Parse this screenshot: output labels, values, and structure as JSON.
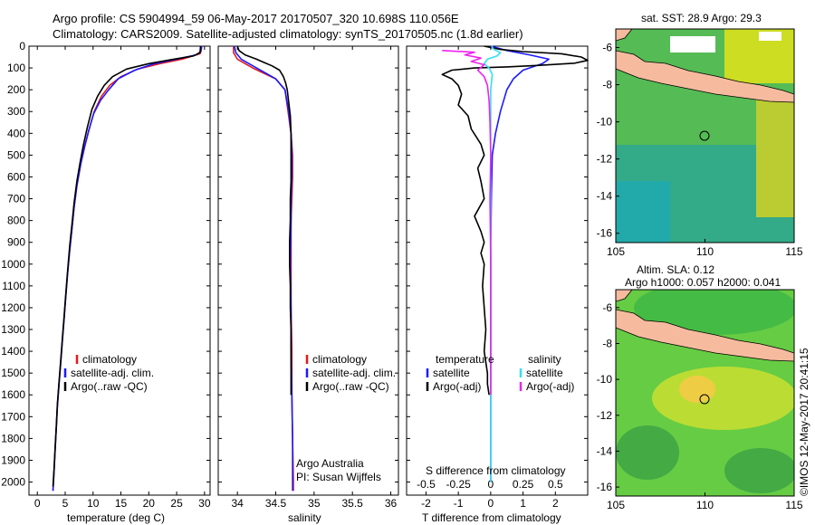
{
  "header": {
    "line1": "Argo profile: CS 5904994_59 06-May-2017 20170507_320 10.698S 110.056E",
    "line2": "Climatology: CARS2009. Satellite-adjusted climatology: synTS_20170505.nc (1.8d earlier)"
  },
  "colors": {
    "climatology": "#e31a1c",
    "satellite": "#1a1aff",
    "argo": "#000000",
    "satellite_salinity": "#33e0ee",
    "argo_salinity": "#ee22ee"
  },
  "depth_axis": {
    "ticks": [
      0,
      100,
      200,
      300,
      400,
      500,
      600,
      700,
      800,
      900,
      1000,
      1100,
      1200,
      1300,
      1400,
      1500,
      1600,
      1700,
      1800,
      1900,
      2000
    ],
    "range": [
      0,
      2060
    ]
  },
  "chart_data": [
    {
      "id": "temperature",
      "type": "line",
      "xlabel": "temperature (deg C)",
      "xlim": [
        -1.5,
        31
      ],
      "xticks": [
        "0",
        "5",
        "10",
        "15",
        "20",
        "25",
        "30"
      ],
      "y_axis": "depth (inverted)",
      "legend": [
        "climatology",
        "satellite-adj. clim.",
        "Argo(..raw -QC)"
      ],
      "series": [
        {
          "name": "climatology",
          "color": "#e31a1c",
          "points": [
            [
              29.5,
              0
            ],
            [
              29.4,
              20
            ],
            [
              29.2,
              35
            ],
            [
              26,
              60
            ],
            [
              22,
              80
            ],
            [
              18,
              105
            ],
            [
              15,
              140
            ],
            [
              13,
              180
            ],
            [
              11.5,
              230
            ],
            [
              10.2,
              300
            ],
            [
              9.3,
              380
            ],
            [
              8.5,
              460
            ],
            [
              7.8,
              540
            ],
            [
              7.1,
              640
            ],
            [
              6.6,
              740
            ],
            [
              6.2,
              840
            ],
            [
              5.8,
              940
            ],
            [
              5.4,
              1050
            ],
            [
              5.1,
              1150
            ],
            [
              4.8,
              1250
            ],
            [
              4.5,
              1350
            ],
            [
              4.2,
              1450
            ],
            [
              3.9,
              1550
            ],
            [
              3.6,
              1650
            ],
            [
              3.4,
              1750
            ],
            [
              3.2,
              1850
            ],
            [
              3.0,
              1950
            ],
            [
              2.8,
              2040
            ]
          ]
        },
        {
          "name": "satellite-adj. clim.",
          "color": "#1a1aff",
          "points": [
            [
              29.5,
              0
            ],
            [
              29.3,
              25
            ],
            [
              28.5,
              40
            ],
            [
              25,
              60
            ],
            [
              21,
              80
            ],
            [
              17.5,
              110
            ],
            [
              14.5,
              150
            ],
            [
              12.8,
              200
            ],
            [
              11.3,
              250
            ],
            [
              10.1,
              310
            ],
            [
              9.2,
              390
            ],
            [
              8.5,
              460
            ],
            [
              7.8,
              540
            ],
            [
              7.1,
              640
            ],
            [
              6.6,
              740
            ],
            [
              6.2,
              840
            ],
            [
              5.8,
              940
            ],
            [
              5.4,
              1050
            ],
            [
              5.1,
              1150
            ],
            [
              4.8,
              1250
            ],
            [
              4.5,
              1350
            ],
            [
              4.2,
              1450
            ],
            [
              3.9,
              1550
            ],
            [
              3.6,
              1650
            ],
            [
              3.4,
              1750
            ],
            [
              3.2,
              1850
            ],
            [
              3.0,
              1950
            ],
            [
              2.8,
              2040
            ]
          ]
        },
        {
          "name": "Argo(..raw -QC)",
          "color": "#000000",
          "points": [
            [
              29.3,
              0
            ],
            [
              29.2,
              30
            ],
            [
              28,
              45
            ],
            [
              24,
              62
            ],
            [
              20,
              80
            ],
            [
              16,
              105
            ],
            [
              13.5,
              140
            ],
            [
              12,
              180
            ],
            [
              10.8,
              230
            ],
            [
              9.8,
              290
            ],
            [
              9.0,
              370
            ],
            [
              8.3,
              450
            ],
            [
              7.7,
              530
            ],
            [
              7.1,
              620
            ],
            [
              6.6,
              720
            ],
            [
              6.2,
              820
            ],
            [
              5.8,
              920
            ],
            [
              5.4,
              1040
            ],
            [
              5.1,
              1140
            ],
            [
              4.8,
              1240
            ],
            [
              4.5,
              1340
            ],
            [
              4.2,
              1440
            ],
            [
              3.9,
              1540
            ],
            [
              3.6,
              1640
            ],
            [
              3.4,
              1740
            ],
            [
              3.2,
              1840
            ],
            [
              3.0,
              1940
            ],
            [
              2.8,
              2020
            ]
          ]
        }
      ]
    },
    {
      "id": "salinity",
      "type": "line",
      "xlabel": "salinity",
      "xlim": [
        33.75,
        36.1
      ],
      "xticks": [
        "34",
        "34.5",
        "35",
        "35.5",
        "36"
      ],
      "y_axis": "depth (inverted)",
      "legend": [
        "climatology",
        "satellite-adj. clim.",
        "Argo(..raw -QC)"
      ],
      "annotation": [
        "Argo Australia",
        "PI: Susan Wijffels"
      ],
      "series": [
        {
          "name": "climatology",
          "color": "#e31a1c",
          "points": [
            [
              33.95,
              0
            ],
            [
              33.95,
              30
            ],
            [
              34.0,
              60
            ],
            [
              34.2,
              100
            ],
            [
              34.5,
              150
            ],
            [
              34.62,
              200
            ],
            [
              34.66,
              300
            ],
            [
              34.7,
              400
            ],
            [
              34.72,
              500
            ],
            [
              34.72,
              600
            ],
            [
              34.71,
              700
            ],
            [
              34.7,
              800
            ],
            [
              34.7,
              1000
            ],
            [
              34.7,
              1200
            ],
            [
              34.71,
              1400
            ],
            [
              34.71,
              1600
            ],
            [
              34.72,
              1800
            ],
            [
              34.73,
              2000
            ],
            [
              34.73,
              2040
            ]
          ]
        },
        {
          "name": "satellite-adj. clim.",
          "color": "#1a1aff",
          "points": [
            [
              33.96,
              0
            ],
            [
              33.98,
              30
            ],
            [
              34.05,
              60
            ],
            [
              34.25,
              100
            ],
            [
              34.5,
              150
            ],
            [
              34.62,
              200
            ],
            [
              34.67,
              300
            ],
            [
              34.7,
              400
            ],
            [
              34.71,
              500
            ],
            [
              34.71,
              600
            ],
            [
              34.7,
              700
            ],
            [
              34.7,
              800
            ],
            [
              34.69,
              1000
            ],
            [
              34.7,
              1200
            ],
            [
              34.7,
              1400
            ],
            [
              34.71,
              1600
            ],
            [
              34.72,
              1800
            ],
            [
              34.72,
              2000
            ],
            [
              34.72,
              2040
            ]
          ]
        },
        {
          "name": "Argo(..raw -QC)",
          "color": "#000000",
          "points": [
            [
              34.0,
              0
            ],
            [
              34.02,
              20
            ],
            [
              34.1,
              40
            ],
            [
              34.25,
              60
            ],
            [
              34.35,
              75
            ],
            [
              34.45,
              90
            ],
            [
              34.55,
              110
            ],
            [
              34.6,
              140
            ],
            [
              34.63,
              170
            ],
            [
              34.65,
              200
            ],
            [
              34.67,
              260
            ],
            [
              34.69,
              320
            ],
            [
              34.7,
              400
            ],
            [
              34.7,
              470
            ],
            [
              34.7,
              540
            ],
            [
              34.7,
              620
            ],
            [
              34.69,
              700
            ],
            [
              34.69,
              800
            ],
            [
              34.68,
              900
            ],
            [
              34.68,
              1000
            ],
            [
              34.69,
              1100
            ],
            [
              34.69,
              1200
            ],
            [
              34.7,
              1300
            ],
            [
              34.7,
              1400
            ],
            [
              34.7,
              1500
            ],
            [
              34.7,
              1600
            ]
          ]
        }
      ]
    },
    {
      "id": "differences",
      "type": "line",
      "xlabel": "T difference from climatology",
      "xlim": [
        -2.6,
        3.0
      ],
      "xticks": [
        "-2",
        "-1",
        "0",
        "1",
        "2"
      ],
      "top_xlabel": "S difference from climatology",
      "top_xticks": [
        "-0.5",
        "-0.25",
        "0",
        "0.25",
        "0.5"
      ],
      "s_diff_scale": "T units = 4 x S units",
      "legend_left_title": "temperature",
      "legend_right_title": "salinity",
      "legend": [
        "satellite",
        "Argo(-adj)",
        "satellite",
        "Argo(-adj)"
      ],
      "series": [
        {
          "name": "temperature satellite",
          "color": "#1a1aff",
          "points": [
            [
              0,
              0
            ],
            [
              0.5,
              20
            ],
            [
              1.2,
              40
            ],
            [
              1.8,
              60
            ],
            [
              1.6,
              80
            ],
            [
              1.0,
              110
            ],
            [
              0.7,
              150
            ],
            [
              0.5,
              200
            ],
            [
              0.3,
              300
            ],
            [
              0.15,
              400
            ],
            [
              0.05,
              500
            ],
            [
              0.02,
              700
            ],
            [
              0.0,
              900
            ],
            [
              0.0,
              1200
            ],
            [
              0.0,
              1600
            ],
            [
              0.0,
              2000
            ]
          ]
        },
        {
          "name": "temperature Argo(-adj)",
          "color": "#000000",
          "points": [
            [
              -0.2,
              0
            ],
            [
              0.3,
              15
            ],
            [
              1.0,
              25
            ],
            [
              2.2,
              35
            ],
            [
              2.8,
              50
            ],
            [
              3.0,
              65
            ],
            [
              2.6,
              78
            ],
            [
              1.5,
              88
            ],
            [
              0.5,
              95
            ],
            [
              -0.5,
              100
            ],
            [
              -1.2,
              110
            ],
            [
              -1.5,
              130
            ],
            [
              -1.2,
              150
            ],
            [
              -1.0,
              180
            ],
            [
              -0.9,
              220
            ],
            [
              -1.0,
              270
            ],
            [
              -0.7,
              320
            ],
            [
              -0.6,
              380
            ],
            [
              -0.3,
              450
            ],
            [
              -0.2,
              500
            ],
            [
              -0.4,
              560
            ],
            [
              -0.3,
              620
            ],
            [
              -0.2,
              700
            ],
            [
              -0.5,
              780
            ],
            [
              -0.3,
              850
            ],
            [
              -0.2,
              900
            ],
            [
              -0.3,
              950
            ],
            [
              -0.2,
              1000
            ],
            [
              -0.25,
              1100
            ],
            [
              -0.2,
              1200
            ],
            [
              -0.15,
              1300
            ],
            [
              -0.2,
              1400
            ],
            [
              -0.1,
              1500
            ],
            [
              -0.1,
              1550
            ],
            [
              -0.05,
              1600
            ]
          ]
        },
        {
          "name": "salinity satellite",
          "color": "#33e0ee",
          "points": [
            [
              0.02,
              0
            ],
            [
              0.1,
              15
            ],
            [
              0.3,
              30
            ],
            [
              0.2,
              45
            ],
            [
              -0.1,
              60
            ],
            [
              -0.2,
              80
            ],
            [
              -0.05,
              100
            ],
            [
              0.05,
              130
            ],
            [
              0.0,
              200
            ],
            [
              0.0,
              300
            ],
            [
              0.0,
              500
            ],
            [
              0.0,
              800
            ],
            [
              0.0,
              1200
            ],
            [
              0.0,
              1600
            ],
            [
              0.0,
              2000
            ]
          ]
        },
        {
          "name": "salinity Argo(-adj)",
          "color": "#ee22ee",
          "points": [
            [
              -1.5,
              20
            ],
            [
              -0.5,
              28
            ],
            [
              -0.8,
              40
            ],
            [
              -0.3,
              55
            ],
            [
              -0.6,
              70
            ],
            [
              -0.2,
              85
            ],
            [
              -0.4,
              110
            ],
            [
              -0.2,
              140
            ],
            [
              -0.1,
              180
            ],
            [
              -0.05,
              250
            ],
            [
              -0.02,
              350
            ],
            [
              0.0,
              500
            ],
            [
              -0.02,
              700
            ],
            [
              0.0,
              1000
            ],
            [
              0.0,
              1300
            ],
            [
              0.0,
              1600
            ]
          ]
        }
      ]
    }
  ],
  "maps": {
    "top": {
      "title": "sat. SST: 28.9 Argo: 29.3",
      "xticks": [
        "105",
        "110",
        "115"
      ],
      "yticks": [
        "-6",
        "-8",
        "-10",
        "-12",
        "-14",
        "-16"
      ],
      "lon_range": [
        105,
        115
      ],
      "lat_range": [
        -5,
        -16.5
      ],
      "float_position": [
        110.056,
        -10.698
      ]
    },
    "bottom": {
      "title_line1": "Altim. SLA: 0.12",
      "title_line2": "Argo h1000: 0.057 h2000: 0.041",
      "xticks": [
        "105",
        "110",
        "115"
      ],
      "yticks": [
        "-6",
        "-8",
        "-10",
        "-12",
        "-14",
        "-16"
      ],
      "lon_range": [
        105,
        115
      ],
      "lat_range": [
        -5,
        -16.5
      ],
      "float_position": [
        110.056,
        -10.698
      ]
    }
  },
  "credit": "©IMOS 12-May-2017 20:41:15"
}
